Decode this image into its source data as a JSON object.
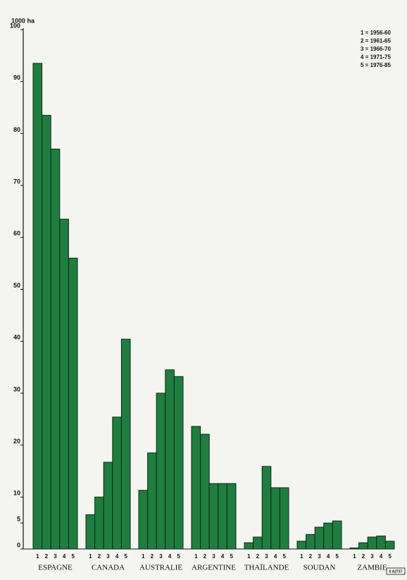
{
  "chart_data": {
    "type": "bar",
    "y_label": "1000 ha",
    "categories": [
      "ESPAGNE",
      "CANADA",
      "AUSTRALIE",
      "ARGENTINE",
      "THAÏLANDE",
      "SOUDAN",
      "ZAMBIE"
    ],
    "bar_labels": [
      "1",
      "2",
      "3",
      "4",
      "5"
    ],
    "series": [
      {
        "name": "1 = 1956-60",
        "color": "#1f7d40",
        "values": [
          93.5,
          6.6,
          11.3,
          23.6,
          1.2,
          1.5,
          0.2
        ]
      },
      {
        "name": "2 = 1961-65",
        "color": "#1f7d40",
        "values": [
          83.5,
          10,
          18.5,
          22.1,
          2.3,
          2.8,
          1.2
        ]
      },
      {
        "name": "3 = 1966-70",
        "color": "#1f7d40",
        "values": [
          77,
          16.7,
          30,
          12.6,
          15.9,
          4.2,
          2.3
        ]
      },
      {
        "name": "4 = 1971-75",
        "color": "#1f7d40",
        "values": [
          63.5,
          25.4,
          34.5,
          12.6,
          11.8,
          5,
          2.5
        ]
      },
      {
        "name": "5 = 1976-85",
        "color": "#1f7d40",
        "values": [
          56,
          40.4,
          33.2,
          12.6,
          11.8,
          5.4,
          1.5
        ]
      }
    ],
    "ylim": [
      0,
      100
    ],
    "yticks": [
      0,
      5,
      10,
      20,
      30,
      40,
      50,
      60,
      70,
      80,
      90,
      100
    ],
    "code": "6 A2737"
  }
}
